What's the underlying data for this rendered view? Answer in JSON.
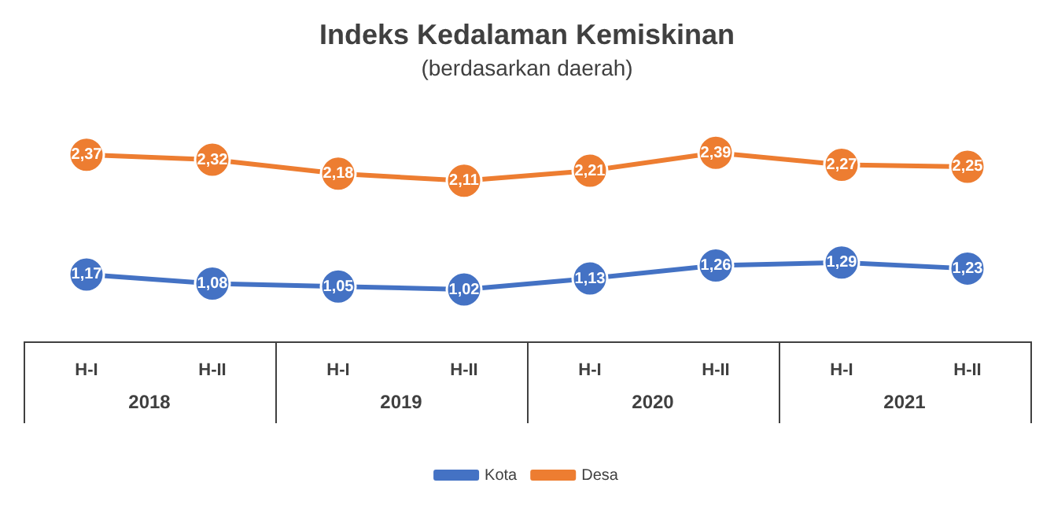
{
  "chart_data": {
    "type": "line",
    "title": "Indeks Kedalaman Kemiskinan",
    "subtitle": "(berdasarkan daerah)",
    "categories": [
      "H-I",
      "H-II",
      "H-I",
      "H-II",
      "H-I",
      "H-II",
      "H-I",
      "H-II"
    ],
    "annotations": [
      "2018",
      "2019",
      "2020",
      "2021"
    ],
    "series": [
      {
        "name": "Kota",
        "color": "#4472c4",
        "values": [
          1.17,
          1.08,
          1.05,
          1.02,
          1.13,
          1.26,
          1.29,
          1.23
        ],
        "value_labels": [
          "1,17",
          "1,08",
          "1,05",
          "1,02",
          "1,13",
          "1,26",
          "1,29",
          "1,23"
        ]
      },
      {
        "name": "Desa",
        "color": "#ed7d31",
        "values": [
          2.37,
          2.32,
          2.18,
          2.11,
          2.21,
          2.39,
          2.27,
          2.25
        ],
        "value_labels": [
          "2,37",
          "2,32",
          "2,18",
          "2,11",
          "2,21",
          "2,39",
          "2,27",
          "2,25"
        ]
      }
    ],
    "tick_labels": "x",
    "grid": false,
    "legend": "bottom",
    "marker": "circle",
    "line_style": "solid"
  }
}
